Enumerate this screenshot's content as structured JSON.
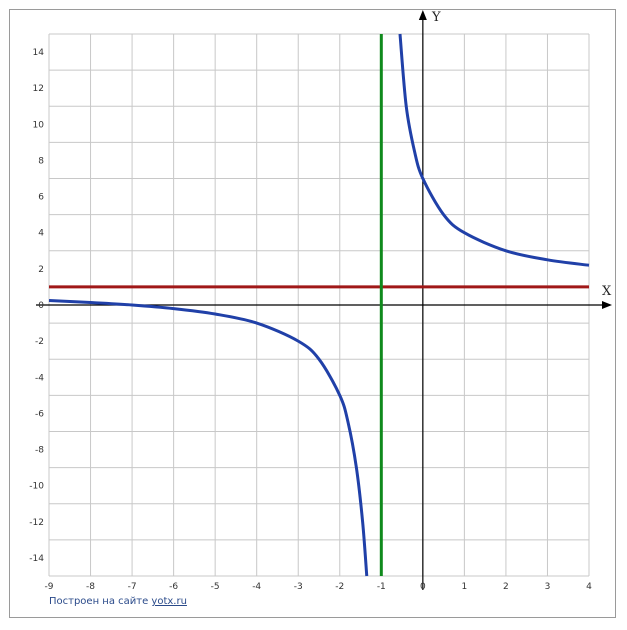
{
  "chart_data": {
    "type": "line",
    "title": "",
    "xlabel": "X",
    "ylabel": "Y",
    "xlim": [
      -9,
      4
    ],
    "ylim": [
      -15,
      15
    ],
    "x_ticks": [
      -9,
      -8,
      -7,
      -6,
      -5,
      -4,
      -3,
      -2,
      -1,
      0,
      1,
      2,
      3,
      4
    ],
    "y_ticks": [
      -14,
      -12,
      -10,
      -8,
      -6,
      -4,
      -2,
      0,
      2,
      4,
      6,
      8,
      10,
      12,
      14
    ],
    "grid": true,
    "series": [
      {
        "color": "#2040a8",
        "points": [
          [
            -9,
            0.25
          ],
          [
            -8,
            0.14
          ],
          [
            -7,
            0.0
          ],
          [
            -6,
            -0.2
          ],
          [
            -5,
            -0.5
          ],
          [
            -4,
            -1.0
          ],
          [
            -3,
            -2.0
          ],
          [
            -2.5,
            -3.0
          ],
          [
            -2,
            -5.0
          ],
          [
            -1.8,
            -6.5
          ],
          [
            -1.6,
            -9.0
          ],
          [
            -1.45,
            -12.0
          ],
          [
            -1.35,
            -15.0
          ]
        ]
      },
      {
        "color": "#2040a8",
        "points": [
          [
            -0.55,
            15.0
          ],
          [
            -0.4,
            11.0
          ],
          [
            -0.2,
            8.5
          ],
          [
            0,
            7.0
          ],
          [
            0.5,
            5.0
          ],
          [
            1,
            4.0
          ],
          [
            2,
            3.0
          ],
          [
            3,
            2.5
          ],
          [
            4,
            2.2
          ]
        ]
      },
      {
        "color": "#0f8a1c",
        "points": [
          [
            -1,
            -15
          ],
          [
            -1,
            15
          ]
        ]
      },
      {
        "color": "#a01818",
        "points": [
          [
            -9,
            1
          ],
          [
            4,
            1
          ]
        ]
      }
    ]
  },
  "footer": {
    "credit_prefix": "Построен на сайте ",
    "credit_link": "yotx.ru"
  }
}
